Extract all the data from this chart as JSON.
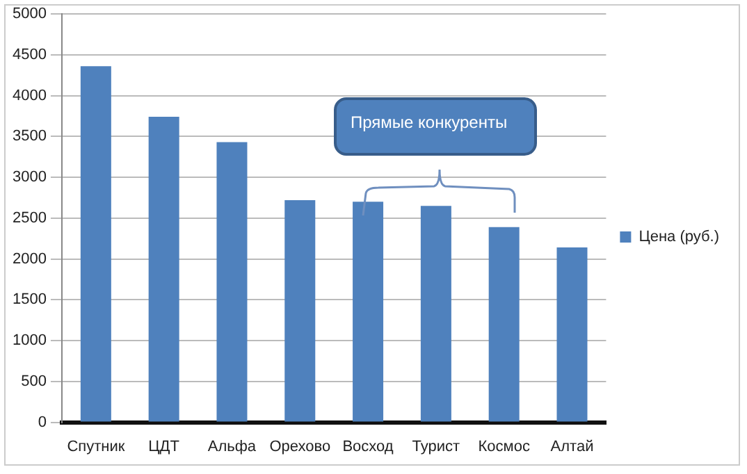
{
  "chart_data": {
    "type": "bar",
    "categories": [
      "Спутник",
      "ЦДТ",
      "Альфа",
      "Орехово",
      "Восход",
      "Турист",
      "Космос",
      "Алтай"
    ],
    "series": [
      {
        "name": "Цена (руб.)",
        "color": "#4f81bd",
        "values": [
          4360,
          3740,
          3430,
          2720,
          2700,
          2650,
          2390,
          2140
        ]
      }
    ],
    "ylim": [
      0,
      5000
    ],
    "yticks": [
      0,
      500,
      1000,
      1500,
      2000,
      2500,
      3000,
      3500,
      4000,
      4500,
      5000
    ],
    "grid": "y",
    "legend": "right",
    "annotations": [
      "Прямые конкуренты"
    ]
  }
}
